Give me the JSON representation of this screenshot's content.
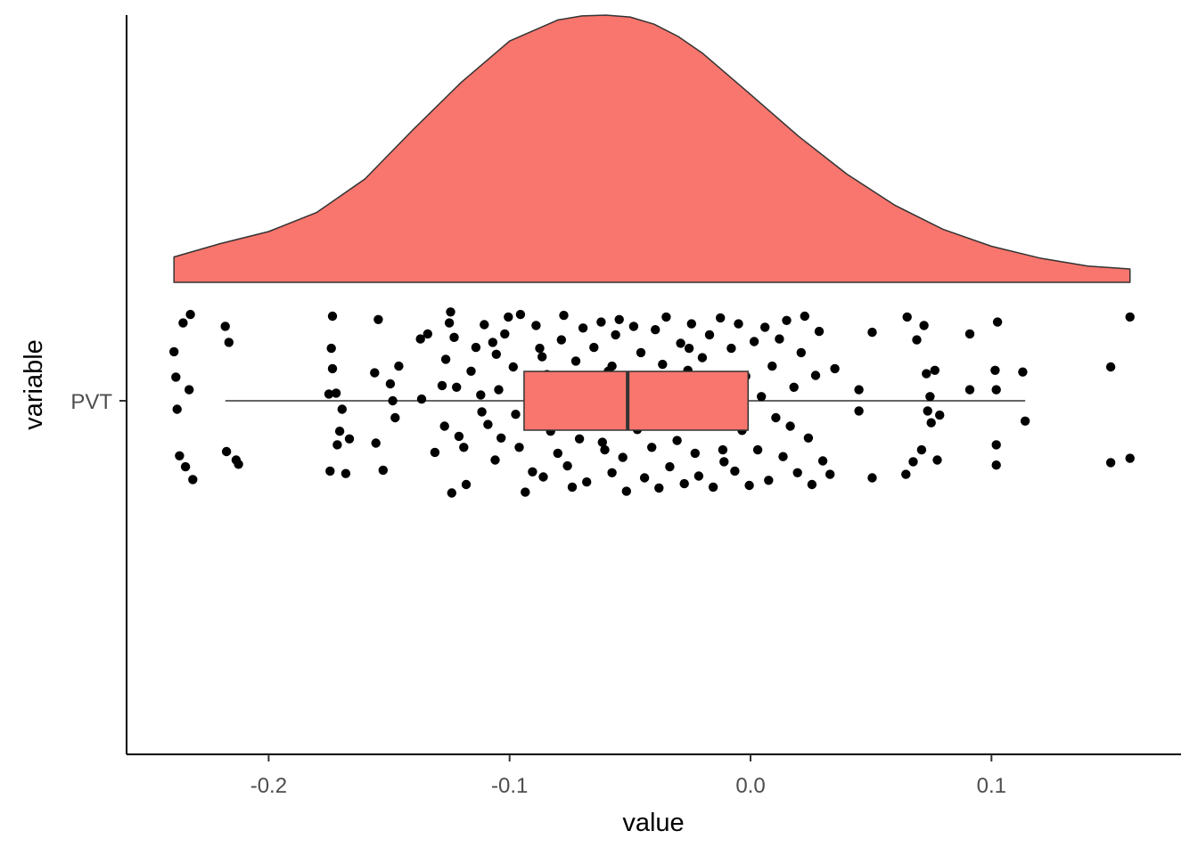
{
  "chart_data": {
    "type": "raincloud",
    "title": "",
    "xlabel": "value",
    "ylabel": "variable",
    "xlim": [
      -0.26,
      0.18
    ],
    "x_ticks": [
      -0.2,
      -0.1,
      0.0,
      0.1
    ],
    "x_tick_labels": [
      "-0.2",
      "-0.1",
      "0.0",
      "0.1"
    ],
    "category": "PVT",
    "grid": false,
    "legend": "none",
    "colors": {
      "fill": "#F8766D",
      "outline": "#333333",
      "point": "#000000",
      "median": "#333333"
    },
    "density": {
      "x": [
        -0.2393,
        -0.22,
        -0.2,
        -0.18,
        -0.16,
        -0.14,
        -0.12,
        -0.1,
        -0.08,
        -0.07,
        -0.06,
        -0.05,
        -0.04,
        -0.03,
        -0.02,
        0.0,
        0.02,
        0.04,
        0.06,
        0.08,
        0.1,
        0.12,
        0.14,
        0.1575
      ],
      "y": [
        0.095,
        0.145,
        0.19,
        0.262,
        0.387,
        0.572,
        0.749,
        0.903,
        0.982,
        0.997,
        1.0,
        0.993,
        0.966,
        0.92,
        0.858,
        0.703,
        0.546,
        0.405,
        0.288,
        0.198,
        0.135,
        0.091,
        0.061,
        0.05
      ]
    },
    "box": {
      "whisker_low": -0.218,
      "q1": -0.094,
      "median": -0.051,
      "q3": -0.001,
      "whisker_high": 0.114
    },
    "points": [
      [
        -0.2393,
        0.58
      ],
      [
        -0.2385,
        0.28
      ],
      [
        -0.238,
        -0.1
      ],
      [
        -0.237,
        -0.65
      ],
      [
        -0.2355,
        0.92
      ],
      [
        -0.2345,
        -0.78
      ],
      [
        -0.233,
        0.13
      ],
      [
        -0.2325,
        1.02
      ],
      [
        -0.2315,
        -0.93
      ],
      [
        -0.218,
        0.88
      ],
      [
        -0.2175,
        -0.6
      ],
      [
        -0.2165,
        0.69
      ],
      [
        -0.2135,
        -0.7
      ],
      [
        -0.2125,
        -0.75
      ],
      [
        -0.175,
        0.08
      ],
      [
        -0.1745,
        -0.83
      ],
      [
        -0.174,
        0.62
      ],
      [
        -0.1735,
        0.38
      ],
      [
        -0.1735,
        1.0
      ],
      [
        -0.172,
        0.09
      ],
      [
        -0.1715,
        -0.52
      ],
      [
        -0.1705,
        -0.36
      ],
      [
        -0.1695,
        -0.1
      ],
      [
        -0.168,
        -0.86
      ],
      [
        -0.1665,
        -0.45
      ],
      [
        -0.156,
        0.33
      ],
      [
        -0.1555,
        -0.5
      ],
      [
        -0.1545,
        0.96
      ],
      [
        -0.1525,
        -0.82
      ],
      [
        -0.1495,
        0.2
      ],
      [
        -0.1485,
        0.0
      ],
      [
        -0.1475,
        -0.2
      ],
      [
        -0.146,
        0.41
      ],
      [
        -0.137,
        0.73
      ],
      [
        -0.1365,
        0.02
      ],
      [
        -0.134,
        0.79
      ],
      [
        -0.131,
        -0.61
      ],
      [
        -0.128,
        0.18
      ],
      [
        -0.127,
        -0.3
      ],
      [
        -0.1265,
        0.49
      ],
      [
        -0.125,
        0.92
      ],
      [
        -0.1245,
        1.05
      ],
      [
        -0.124,
        -1.09
      ],
      [
        -0.123,
        0.75
      ],
      [
        -0.122,
        0.16
      ],
      [
        -0.121,
        -0.42
      ],
      [
        -0.119,
        -0.55
      ],
      [
        -0.118,
        -0.99
      ],
      [
        -0.116,
        0.35
      ],
      [
        -0.114,
        0.63
      ],
      [
        -0.112,
        0.07
      ],
      [
        -0.1105,
        0.9
      ],
      [
        -0.109,
        -0.28
      ],
      [
        -0.107,
        0.69
      ],
      [
        -0.106,
        -0.7
      ],
      [
        -0.1045,
        0.13
      ],
      [
        -0.1035,
        -0.44
      ],
      [
        -0.102,
        0.79
      ],
      [
        -0.1005,
        0.99
      ],
      [
        -0.0985,
        0.4
      ],
      [
        -0.0975,
        -0.16
      ],
      [
        -0.096,
        -0.55
      ],
      [
        -0.0955,
        1.02
      ],
      [
        -0.0935,
        -1.08
      ],
      [
        -0.092,
        0.25
      ],
      [
        -0.0905,
        -0.84
      ],
      [
        -0.089,
        0.89
      ],
      [
        -0.0875,
        0.62
      ],
      [
        -0.086,
        -0.9
      ],
      [
        -0.0845,
        0.31
      ],
      [
        -0.083,
        -0.36
      ],
      [
        -0.0815,
        0.04
      ],
      [
        -0.08,
        -0.62
      ],
      [
        -0.0785,
        0.72
      ],
      [
        -0.0775,
        1.01
      ],
      [
        -0.076,
        -0.77
      ],
      [
        -0.074,
        -1.02
      ],
      [
        -0.0725,
        0.47
      ],
      [
        -0.071,
        -0.45
      ],
      [
        -0.0695,
        0.86
      ],
      [
        -0.068,
        -0.96
      ],
      [
        -0.0665,
        0.18
      ],
      [
        -0.065,
        0.63
      ],
      [
        -0.0635,
        -0.26
      ],
      [
        -0.062,
        0.93
      ],
      [
        -0.0605,
        -0.58
      ],
      [
        -0.059,
        0.35
      ],
      [
        -0.0575,
        -0.85
      ],
      [
        -0.056,
        0.78
      ],
      [
        -0.0545,
        0.96
      ],
      [
        -0.053,
        -0.67
      ],
      [
        -0.0515,
        -1.07
      ],
      [
        -0.05,
        0.14
      ],
      [
        -0.0485,
        0.88
      ],
      [
        -0.047,
        -0.34
      ],
      [
        -0.0455,
        0.57
      ],
      [
        -0.044,
        -0.91
      ],
      [
        -0.0425,
        0.26
      ],
      [
        -0.041,
        -0.55
      ],
      [
        -0.0395,
        0.84
      ],
      [
        -0.038,
        -1.03
      ],
      [
        -0.0365,
        0.43
      ],
      [
        -0.035,
        0.99
      ],
      [
        -0.0335,
        -0.78
      ],
      [
        -0.032,
        0.05
      ],
      [
        -0.0305,
        -0.47
      ],
      [
        -0.029,
        0.68
      ],
      [
        -0.0275,
        -0.98
      ],
      [
        -0.026,
        0.36
      ],
      [
        -0.0245,
        0.91
      ],
      [
        -0.023,
        -0.62
      ],
      [
        -0.0215,
        -0.89
      ],
      [
        -0.02,
        0.51
      ],
      [
        -0.0185,
        -0.24
      ],
      [
        -0.017,
        0.78
      ],
      [
        -0.0155,
        -1.02
      ],
      [
        -0.014,
        0.19
      ],
      [
        -0.0125,
        0.98
      ],
      [
        -0.011,
        -0.72
      ],
      [
        -0.0095,
        -0.13
      ],
      [
        -0.008,
        0.62
      ],
      [
        -0.0065,
        -0.83
      ],
      [
        -0.005,
        0.91
      ],
      [
        -0.0035,
        -0.35
      ],
      [
        -0.002,
        0.29
      ],
      [
        -0.0005,
        -1.0
      ],
      [
        0.0015,
        0.7
      ],
      [
        0.003,
        -0.58
      ],
      [
        0.0045,
        0.05
      ],
      [
        0.006,
        0.87
      ],
      [
        0.0075,
        -0.94
      ],
      [
        0.009,
        0.41
      ],
      [
        0.0105,
        -0.2
      ],
      [
        0.012,
        0.73
      ],
      [
        0.0135,
        -0.66
      ],
      [
        0.015,
        0.95
      ],
      [
        0.0165,
        -0.3
      ],
      [
        0.018,
        0.16
      ],
      [
        0.0195,
        -0.85
      ],
      [
        0.021,
        0.57
      ],
      [
        0.0225,
        1.0
      ],
      [
        0.024,
        -0.44
      ],
      [
        0.0255,
        -0.99
      ],
      [
        0.027,
        0.3
      ],
      [
        0.0285,
        0.82
      ],
      [
        0.03,
        -0.71
      ],
      [
        0.033,
        -0.87
      ],
      [
        0.035,
        0.38
      ],
      [
        -0.1055,
        0.55
      ],
      [
        -0.0895,
        0.15
      ],
      [
        -0.0735,
        -0.12
      ],
      [
        -0.0575,
        0.41
      ],
      [
        -0.0415,
        -0.21
      ],
      [
        -0.0255,
        0.62
      ],
      [
        -0.0095,
        0.29
      ],
      [
        -0.1115,
        -0.13
      ],
      [
        -0.0865,
        0.52
      ],
      [
        -0.0615,
        -0.49
      ],
      [
        -0.0365,
        0.12
      ],
      [
        -0.0115,
        -0.58
      ],
      [
        0.045,
        -0.12
      ],
      [
        0.045,
        0.13
      ],
      [
        0.0505,
        -0.91
      ],
      [
        0.0505,
        0.81
      ],
      [
        0.0645,
        -0.87
      ],
      [
        0.065,
        0.99
      ],
      [
        0.0675,
        -0.72
      ],
      [
        0.069,
        0.72
      ],
      [
        0.071,
        -0.58
      ],
      [
        0.072,
        0.89
      ],
      [
        0.073,
        0.32
      ],
      [
        0.0735,
        -0.12
      ],
      [
        0.0745,
        0.05
      ],
      [
        0.075,
        -0.26
      ],
      [
        0.0765,
        0.36
      ],
      [
        0.0775,
        -0.7
      ],
      [
        0.0785,
        -0.17
      ],
      [
        0.091,
        0.79
      ],
      [
        0.091,
        0.13
      ],
      [
        0.1015,
        0.36
      ],
      [
        0.102,
        -0.52
      ],
      [
        0.102,
        0.13
      ],
      [
        0.102,
        -0.76
      ],
      [
        0.1025,
        0.93
      ],
      [
        0.113,
        0.34
      ],
      [
        0.114,
        -0.24
      ],
      [
        0.1495,
        0.4
      ],
      [
        0.1495,
        -0.73
      ],
      [
        0.1575,
        -0.68
      ],
      [
        0.1575,
        0.99
      ]
    ]
  }
}
